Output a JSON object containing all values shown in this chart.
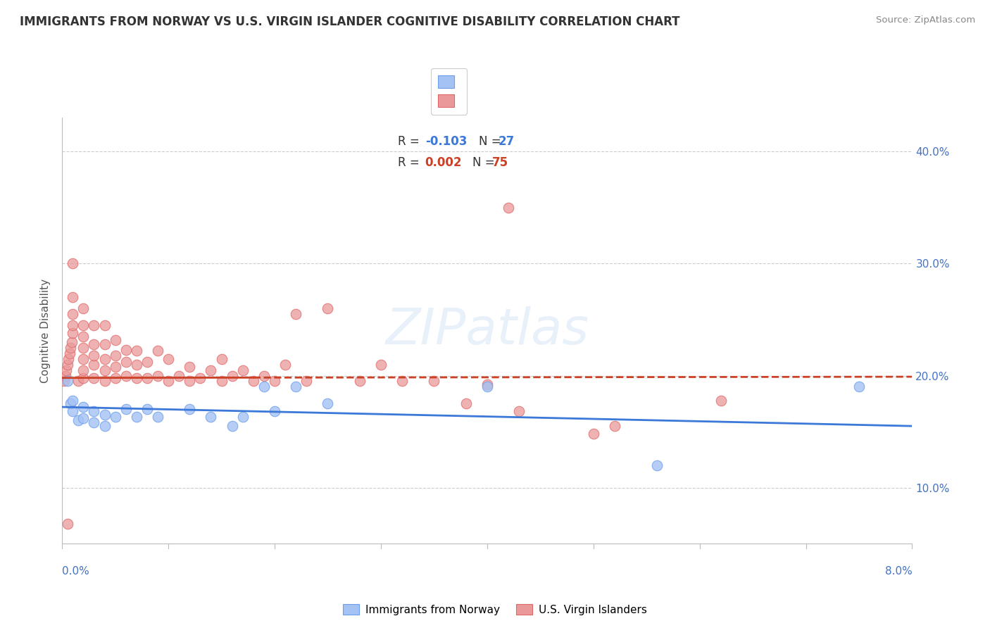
{
  "title": "IMMIGRANTS FROM NORWAY VS U.S. VIRGIN ISLANDER COGNITIVE DISABILITY CORRELATION CHART",
  "source": "Source: ZipAtlas.com",
  "ylabel": "Cognitive Disability",
  "legend_blue_r": "-0.103",
  "legend_blue_n": "27",
  "legend_pink_r": "0.002",
  "legend_pink_n": "75",
  "legend_blue_label": "Immigrants from Norway",
  "legend_pink_label": "U.S. Virgin Islanders",
  "xlim": [
    0.0,
    0.08
  ],
  "ylim": [
    0.05,
    0.43
  ],
  "yticks": [
    0.1,
    0.2,
    0.3,
    0.4
  ],
  "ytick_labels": [
    "10.0%",
    "20.0%",
    "30.0%",
    "40.0%"
  ],
  "background_color": "#ffffff",
  "grid_color": "#cccccc",
  "blue_fill": "#a4c2f4",
  "blue_edge": "#6d9eeb",
  "pink_fill": "#ea9999",
  "pink_edge": "#e06666",
  "blue_line_color": "#3c78d8",
  "pink_line_color": "#cc4125",
  "blue_scatter": [
    [
      0.0005,
      0.195
    ],
    [
      0.0008,
      0.175
    ],
    [
      0.001,
      0.168
    ],
    [
      0.001,
      0.178
    ],
    [
      0.0015,
      0.16
    ],
    [
      0.002,
      0.172
    ],
    [
      0.002,
      0.162
    ],
    [
      0.003,
      0.168
    ],
    [
      0.003,
      0.158
    ],
    [
      0.004,
      0.165
    ],
    [
      0.004,
      0.155
    ],
    [
      0.005,
      0.163
    ],
    [
      0.006,
      0.17
    ],
    [
      0.007,
      0.163
    ],
    [
      0.008,
      0.17
    ],
    [
      0.009,
      0.163
    ],
    [
      0.012,
      0.17
    ],
    [
      0.014,
      0.163
    ],
    [
      0.016,
      0.155
    ],
    [
      0.017,
      0.163
    ],
    [
      0.019,
      0.19
    ],
    [
      0.02,
      0.168
    ],
    [
      0.022,
      0.19
    ],
    [
      0.025,
      0.175
    ],
    [
      0.04,
      0.19
    ],
    [
      0.056,
      0.12
    ],
    [
      0.075,
      0.19
    ]
  ],
  "pink_scatter": [
    [
      0.0002,
      0.195
    ],
    [
      0.0003,
      0.2
    ],
    [
      0.0004,
      0.205
    ],
    [
      0.0005,
      0.21
    ],
    [
      0.0006,
      0.215
    ],
    [
      0.0007,
      0.22
    ],
    [
      0.0008,
      0.225
    ],
    [
      0.0009,
      0.23
    ],
    [
      0.001,
      0.238
    ],
    [
      0.001,
      0.245
    ],
    [
      0.001,
      0.255
    ],
    [
      0.001,
      0.27
    ],
    [
      0.001,
      0.3
    ],
    [
      0.0015,
      0.195
    ],
    [
      0.002,
      0.198
    ],
    [
      0.002,
      0.205
    ],
    [
      0.002,
      0.215
    ],
    [
      0.002,
      0.225
    ],
    [
      0.002,
      0.235
    ],
    [
      0.002,
      0.245
    ],
    [
      0.002,
      0.26
    ],
    [
      0.003,
      0.198
    ],
    [
      0.003,
      0.21
    ],
    [
      0.003,
      0.218
    ],
    [
      0.003,
      0.228
    ],
    [
      0.003,
      0.245
    ],
    [
      0.004,
      0.195
    ],
    [
      0.004,
      0.205
    ],
    [
      0.004,
      0.215
    ],
    [
      0.004,
      0.228
    ],
    [
      0.004,
      0.245
    ],
    [
      0.005,
      0.198
    ],
    [
      0.005,
      0.208
    ],
    [
      0.005,
      0.218
    ],
    [
      0.005,
      0.232
    ],
    [
      0.006,
      0.2
    ],
    [
      0.006,
      0.212
    ],
    [
      0.006,
      0.223
    ],
    [
      0.007,
      0.198
    ],
    [
      0.007,
      0.21
    ],
    [
      0.007,
      0.222
    ],
    [
      0.008,
      0.198
    ],
    [
      0.008,
      0.212
    ],
    [
      0.009,
      0.2
    ],
    [
      0.009,
      0.222
    ],
    [
      0.01,
      0.195
    ],
    [
      0.01,
      0.215
    ],
    [
      0.011,
      0.2
    ],
    [
      0.012,
      0.195
    ],
    [
      0.012,
      0.208
    ],
    [
      0.013,
      0.198
    ],
    [
      0.014,
      0.205
    ],
    [
      0.015,
      0.195
    ],
    [
      0.015,
      0.215
    ],
    [
      0.016,
      0.2
    ],
    [
      0.017,
      0.205
    ],
    [
      0.018,
      0.195
    ],
    [
      0.019,
      0.2
    ],
    [
      0.02,
      0.195
    ],
    [
      0.021,
      0.21
    ],
    [
      0.022,
      0.255
    ],
    [
      0.023,
      0.195
    ],
    [
      0.025,
      0.26
    ],
    [
      0.028,
      0.195
    ],
    [
      0.03,
      0.21
    ],
    [
      0.032,
      0.195
    ],
    [
      0.035,
      0.195
    ],
    [
      0.038,
      0.175
    ],
    [
      0.04,
      0.192
    ],
    [
      0.043,
      0.168
    ],
    [
      0.05,
      0.148
    ],
    [
      0.052,
      0.155
    ],
    [
      0.0005,
      0.068
    ],
    [
      0.042,
      0.35
    ],
    [
      0.062,
      0.178
    ]
  ]
}
